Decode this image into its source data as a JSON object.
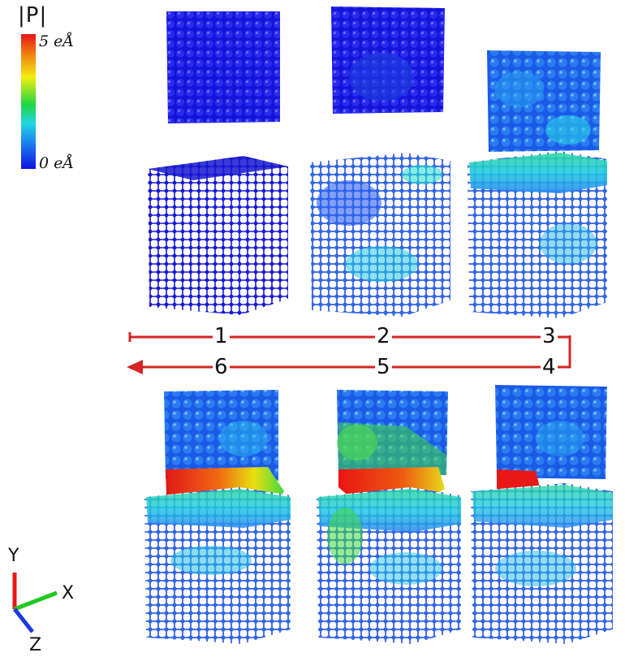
{
  "colorbar": {
    "title": "|P|",
    "max_label": "5 eÅ",
    "min_label": "0 eÅ",
    "colors": [
      "#e8121a",
      "#f07a10",
      "#f2ee10",
      "#20d640",
      "#20d6e0",
      "#1a7af0",
      "#1010e0"
    ]
  },
  "sequence": {
    "steps": [
      "1",
      "2",
      "3",
      "4",
      "5",
      "6"
    ],
    "arrow_color": "#d42424"
  },
  "axes": {
    "x_label": "X",
    "y_label": "Y",
    "z_label": "Z",
    "x_color": "#22c822",
    "y_color": "#e81818",
    "z_color": "#1a3ae0"
  },
  "snapshots": [
    {
      "step": "1",
      "polarization_level": "low"
    },
    {
      "step": "2",
      "polarization_level": "moderate"
    },
    {
      "step": "3",
      "polarization_level": "moderate-high"
    },
    {
      "step": "4",
      "polarization_level": "high"
    },
    {
      "step": "5",
      "polarization_level": "very high"
    },
    {
      "step": "6",
      "polarization_level": "very high"
    }
  ]
}
